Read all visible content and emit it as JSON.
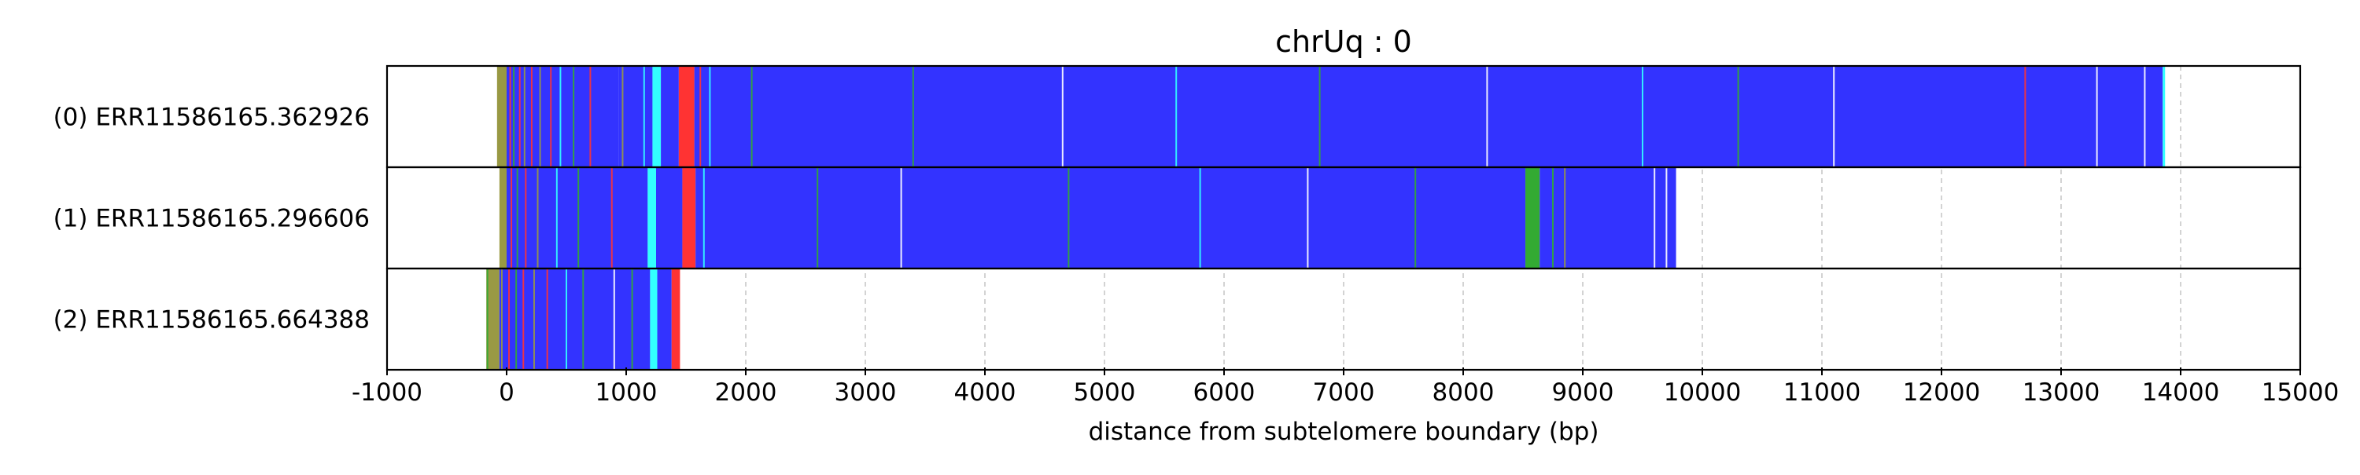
{
  "chart_data": {
    "type": "bar",
    "title": "chrUq : 0",
    "xlabel": "distance from subtelomere boundary (bp)",
    "ylabel": "",
    "xlim": [
      -1000,
      15000
    ],
    "xticks": [
      -1000,
      0,
      1000,
      2000,
      3000,
      4000,
      5000,
      6000,
      7000,
      8000,
      9000,
      10000,
      11000,
      12000,
      13000,
      14000,
      15000
    ],
    "grid": "vertical dashed at x ticks",
    "colors": {
      "blue": "#3333ff",
      "cyan": "#33ffff",
      "red": "#ff3333",
      "green": "#33aa33",
      "olive": "#999944",
      "grid": "#c8c8c8"
    },
    "tracks": [
      {
        "label": "(0) ERR11586165.362926",
        "segments": [
          {
            "start": -80,
            "end": 0,
            "color": "olive"
          },
          {
            "start": 0,
            "end": 940,
            "color": "blue"
          },
          {
            "start": 940,
            "end": 1220,
            "color": "blue"
          },
          {
            "start": 1220,
            "end": 1290,
            "color": "cyan"
          },
          {
            "start": 1290,
            "end": 1440,
            "color": "blue"
          },
          {
            "start": 1440,
            "end": 1570,
            "color": "red"
          },
          {
            "start": 1570,
            "end": 13850,
            "color": "blue"
          },
          {
            "start": 13850,
            "end": 13870,
            "color": "cyan"
          }
        ],
        "stripes": [
          {
            "x": -70,
            "color": "olive"
          },
          {
            "x": -20,
            "color": "olive"
          },
          {
            "x": 30,
            "color": "red"
          },
          {
            "x": 60,
            "color": "green"
          },
          {
            "x": 110,
            "color": "red"
          },
          {
            "x": 150,
            "color": "olive"
          },
          {
            "x": 210,
            "color": "red"
          },
          {
            "x": 280,
            "color": "olive"
          },
          {
            "x": 370,
            "color": "red"
          },
          {
            "x": 450,
            "color": "cyan"
          },
          {
            "x": 560,
            "color": "green"
          },
          {
            "x": 700,
            "color": "red"
          },
          {
            "x": 970,
            "color": "olive"
          },
          {
            "x": 1150,
            "color": "cyan"
          },
          {
            "x": 1620,
            "color": "red"
          },
          {
            "x": 1700,
            "color": "cyan"
          },
          {
            "x": 2050,
            "color": "green"
          },
          {
            "x": 3400,
            "color": "green"
          },
          {
            "x": 4650,
            "color": "white"
          },
          {
            "x": 5600,
            "color": "cyan"
          },
          {
            "x": 6800,
            "color": "green"
          },
          {
            "x": 8200,
            "color": "white"
          },
          {
            "x": 9500,
            "color": "cyan"
          },
          {
            "x": 10300,
            "color": "green"
          },
          {
            "x": 11100,
            "color": "white"
          },
          {
            "x": 12700,
            "color": "red"
          },
          {
            "x": 13300,
            "color": "white"
          },
          {
            "x": 13700,
            "color": "white"
          }
        ]
      },
      {
        "label": "(1) ERR11586165.296606",
        "segments": [
          {
            "start": -60,
            "end": 0,
            "color": "olive"
          },
          {
            "start": 0,
            "end": 1180,
            "color": "blue"
          },
          {
            "start": 1180,
            "end": 1250,
            "color": "cyan"
          },
          {
            "start": 1250,
            "end": 1470,
            "color": "blue"
          },
          {
            "start": 1470,
            "end": 1580,
            "color": "red"
          },
          {
            "start": 1580,
            "end": 8520,
            "color": "blue"
          },
          {
            "start": 8520,
            "end": 8640,
            "color": "green"
          },
          {
            "start": 8640,
            "end": 9000,
            "color": "blue"
          },
          {
            "start": 9000,
            "end": 9780,
            "color": "blue"
          }
        ],
        "stripes": [
          {
            "x": -50,
            "color": "olive"
          },
          {
            "x": 40,
            "color": "red"
          },
          {
            "x": 90,
            "color": "green"
          },
          {
            "x": 160,
            "color": "red"
          },
          {
            "x": 260,
            "color": "olive"
          },
          {
            "x": 420,
            "color": "cyan"
          },
          {
            "x": 600,
            "color": "green"
          },
          {
            "x": 880,
            "color": "red"
          },
          {
            "x": 1650,
            "color": "cyan"
          },
          {
            "x": 2600,
            "color": "green"
          },
          {
            "x": 3300,
            "color": "white"
          },
          {
            "x": 4700,
            "color": "green"
          },
          {
            "x": 5800,
            "color": "cyan"
          },
          {
            "x": 6700,
            "color": "white"
          },
          {
            "x": 7600,
            "color": "green"
          },
          {
            "x": 8750,
            "color": "green"
          },
          {
            "x": 8850,
            "color": "olive"
          },
          {
            "x": 9600,
            "color": "white"
          },
          {
            "x": 9700,
            "color": "white"
          }
        ]
      },
      {
        "label": "(2) ERR11586165.664388",
        "segments": [
          {
            "start": -170,
            "end": -60,
            "color": "olive"
          },
          {
            "start": -60,
            "end": 1200,
            "color": "blue"
          },
          {
            "start": 1200,
            "end": 1260,
            "color": "cyan"
          },
          {
            "start": 1260,
            "end": 1380,
            "color": "blue"
          },
          {
            "start": 1380,
            "end": 1450,
            "color": "red"
          }
        ],
        "stripes": [
          {
            "x": -160,
            "color": "green"
          },
          {
            "x": -40,
            "color": "olive"
          },
          {
            "x": 20,
            "color": "red"
          },
          {
            "x": 80,
            "color": "green"
          },
          {
            "x": 140,
            "color": "red"
          },
          {
            "x": 230,
            "color": "olive"
          },
          {
            "x": 340,
            "color": "red"
          },
          {
            "x": 500,
            "color": "cyan"
          },
          {
            "x": 640,
            "color": "green"
          },
          {
            "x": 900,
            "color": "white"
          },
          {
            "x": 1050,
            "color": "green"
          }
        ]
      }
    ]
  }
}
